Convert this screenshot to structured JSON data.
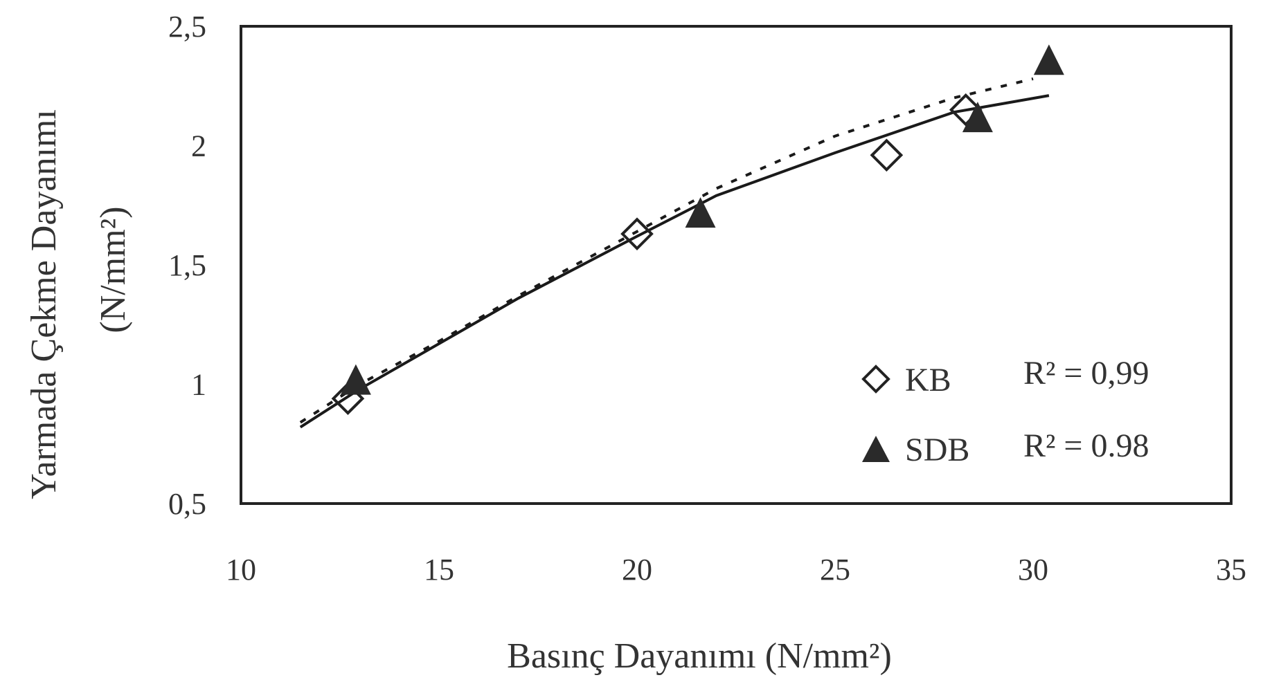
{
  "chart_data": {
    "type": "scatter",
    "xlabel": "Basınç Dayanımı (N/mm²)",
    "ylabel_line1": "Yarmada Çekme Dayanımı",
    "ylabel_line2": "(N/mm²)",
    "xlim": [
      10,
      35
    ],
    "ylim": [
      0.5,
      2.5
    ],
    "x_ticks": [
      10,
      15,
      20,
      25,
      30,
      35
    ],
    "x_tick_labels": [
      "10",
      "15",
      "20",
      "25",
      "30",
      "35"
    ],
    "y_ticks": [
      0.5,
      1,
      1.5,
      2,
      2.5
    ],
    "y_tick_labels": [
      "0,5",
      "1",
      "1,5",
      "2",
      "2,5"
    ],
    "grid": false,
    "legend_position": "bottom-right",
    "series": [
      {
        "name": "KB",
        "marker": "diamond-open",
        "r2_label": "R² = 0,99",
        "trendline": "dotted",
        "trend_x": [
          11.5,
          13,
          15,
          17,
          20,
          22,
          25,
          28,
          30
        ],
        "trend_y": [
          0.84,
          1.0,
          1.18,
          1.37,
          1.64,
          1.82,
          2.04,
          2.2,
          2.28
        ],
        "x": [
          12.7,
          20,
          26.3,
          28.3
        ],
        "y": [
          0.94,
          1.63,
          1.96,
          2.15
        ]
      },
      {
        "name": "SDB",
        "marker": "triangle-filled",
        "r2_label": "R² = 0.98",
        "trendline": "solid",
        "trend_x": [
          11.5,
          13,
          15,
          17,
          20,
          22,
          25,
          28,
          30.4
        ],
        "trend_y": [
          0.82,
          0.98,
          1.17,
          1.36,
          1.62,
          1.79,
          1.97,
          2.14,
          2.21
        ],
        "x": [
          12.9,
          21.6,
          28.6,
          30.4
        ],
        "y": [
          1.02,
          1.72,
          2.12,
          2.36
        ]
      }
    ]
  },
  "colors": {
    "axis": "#222222",
    "marker_fill": "#2a2a2a",
    "line": "#1a1a1a",
    "text": "#333333"
  }
}
